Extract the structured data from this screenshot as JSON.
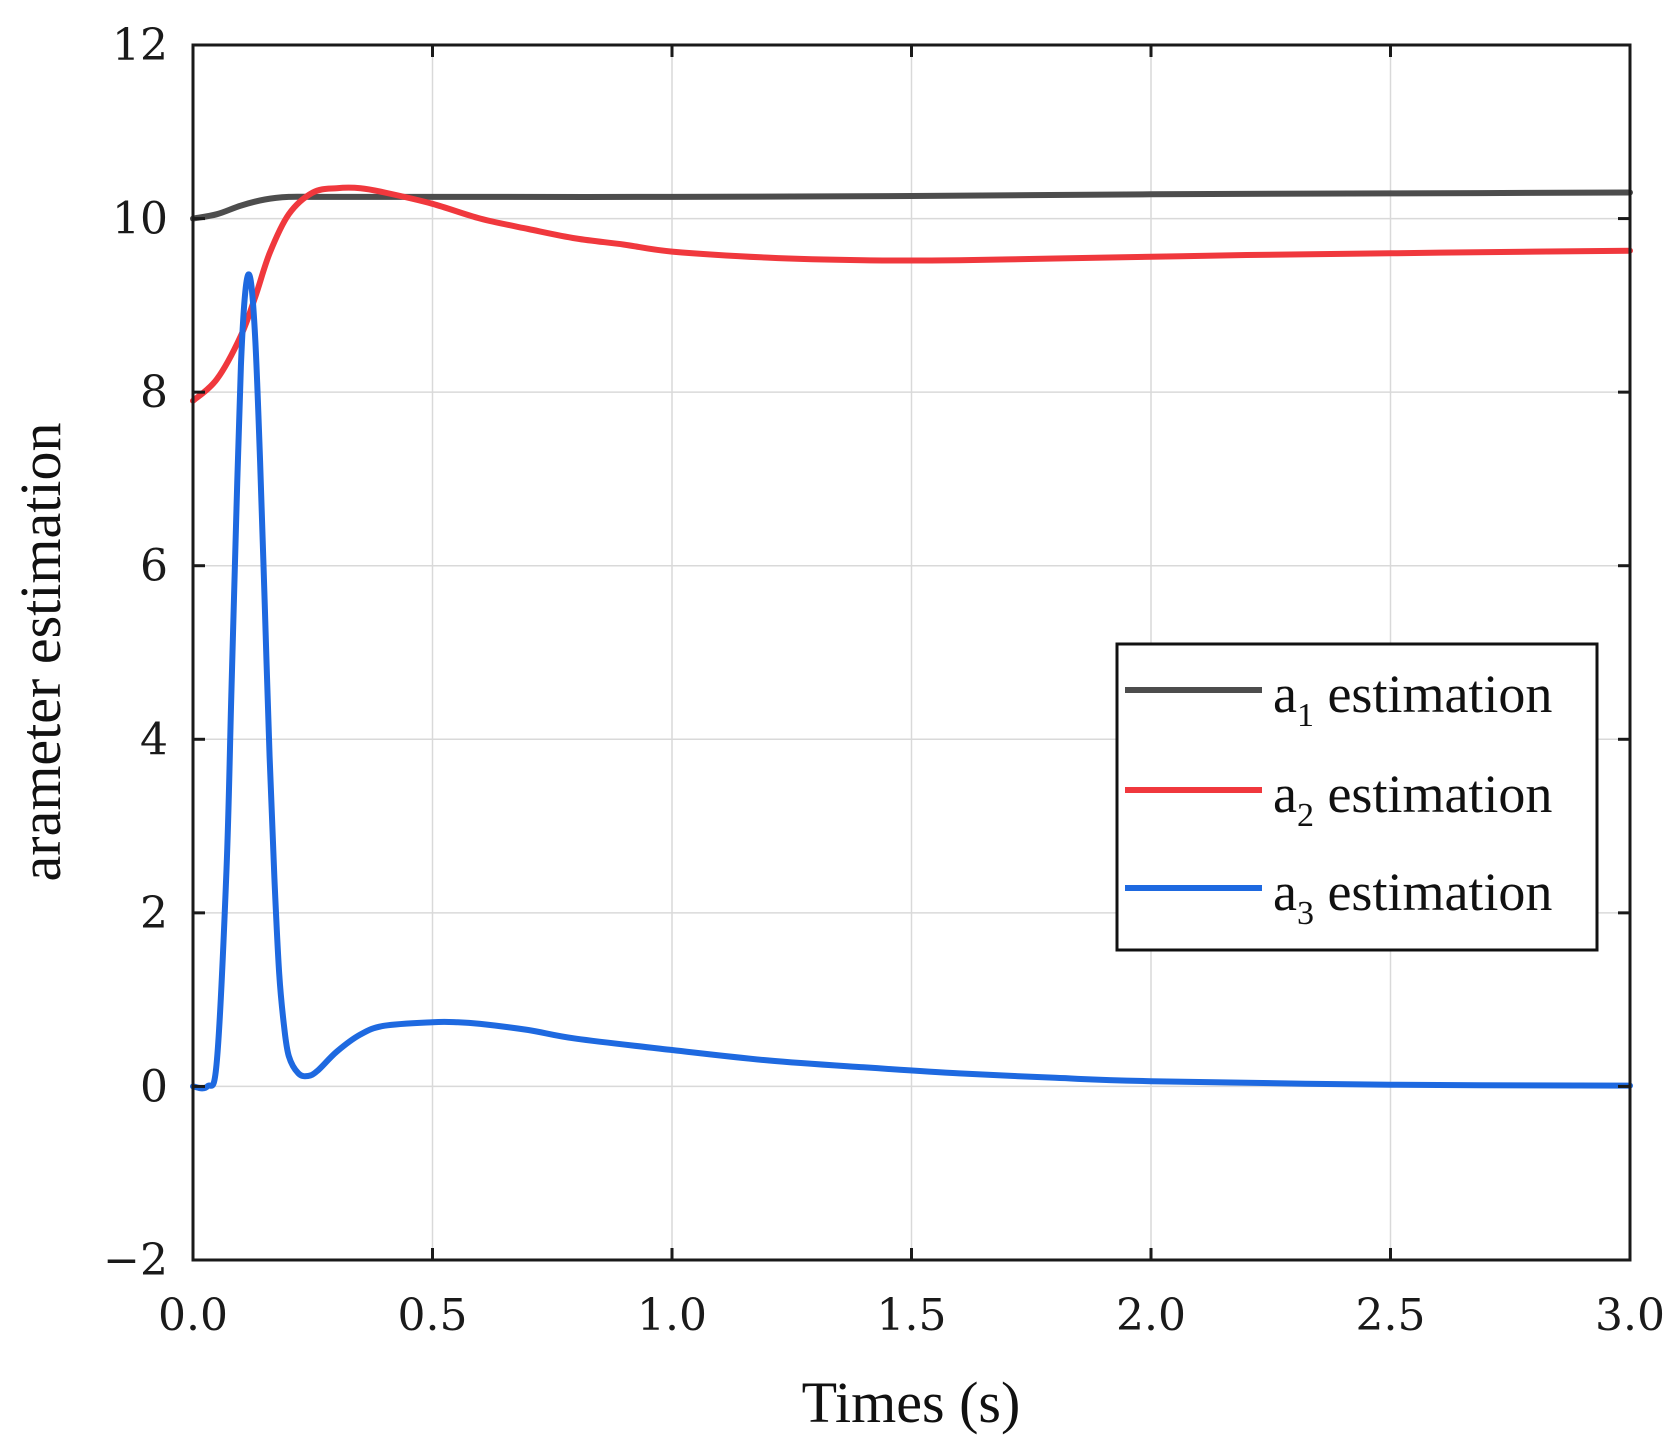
{
  "chart_data": {
    "type": "line",
    "title": "",
    "xlabel": "Times (s)",
    "ylabel": "arameter estimation",
    "xlim": [
      0,
      3
    ],
    "ylim": [
      -2,
      12
    ],
    "xticks": [
      0,
      0.5,
      1.0,
      1.5,
      2.0,
      2.5,
      3.0
    ],
    "xtick_labels": [
      "0.0",
      "0.5",
      "1.0",
      "1.5",
      "2.0",
      "2.5",
      "3.0"
    ],
    "yticks": [
      -2,
      0,
      2,
      4,
      6,
      8,
      10,
      12
    ],
    "ytick_labels": [
      "−2",
      "0",
      "2",
      "4",
      "6",
      "8",
      "10",
      "12"
    ],
    "grid": true,
    "legend_position": "center-right",
    "series": [
      {
        "name": "a1 estimation",
        "legend_base": "a",
        "legend_sub": "1",
        "legend_rest": " estimation",
        "color": "#4d4d4d",
        "x": [
          0,
          0.05,
          0.1,
          0.15,
          0.2,
          0.25,
          0.3,
          0.5,
          1.0,
          1.5,
          2.0,
          2.5,
          3.0
        ],
        "y": [
          10.0,
          10.05,
          10.15,
          10.22,
          10.25,
          10.25,
          10.25,
          10.25,
          10.25,
          10.26,
          10.28,
          10.29,
          10.3
        ]
      },
      {
        "name": "a2 estimation",
        "legend_base": "a",
        "legend_sub": "2",
        "legend_rest": " estimation",
        "color": "#f0383d",
        "x": [
          0,
          0.05,
          0.1,
          0.13,
          0.16,
          0.2,
          0.25,
          0.3,
          0.35,
          0.4,
          0.5,
          0.6,
          0.7,
          0.8,
          0.9,
          1.0,
          1.2,
          1.4,
          1.6,
          1.8,
          2.0,
          2.2,
          2.5,
          2.8,
          3.0
        ],
        "y": [
          7.9,
          8.15,
          8.65,
          9.1,
          9.6,
          10.05,
          10.3,
          10.35,
          10.35,
          10.3,
          10.17,
          10.0,
          9.88,
          9.77,
          9.7,
          9.62,
          9.55,
          9.52,
          9.52,
          9.54,
          9.56,
          9.58,
          9.6,
          9.62,
          9.63
        ]
      },
      {
        "name": "a3 estimation",
        "legend_base": "a",
        "legend_sub": "3",
        "legend_rest": " estimation",
        "color": "#1e69e0",
        "x": [
          0,
          0.03,
          0.05,
          0.07,
          0.08,
          0.09,
          0.1,
          0.11,
          0.12,
          0.13,
          0.14,
          0.15,
          0.16,
          0.17,
          0.18,
          0.19,
          0.2,
          0.22,
          0.24,
          0.26,
          0.3,
          0.35,
          0.4,
          0.5,
          0.55,
          0.6,
          0.7,
          0.8,
          1.0,
          1.2,
          1.4,
          1.6,
          1.8,
          2.0,
          2.5,
          3.0
        ],
        "y": [
          0.0,
          0.0,
          0.3,
          2.5,
          4.5,
          6.5,
          8.3,
          9.2,
          9.3,
          8.6,
          7.2,
          5.5,
          3.8,
          2.4,
          1.3,
          0.7,
          0.35,
          0.15,
          0.12,
          0.18,
          0.4,
          0.6,
          0.7,
          0.74,
          0.74,
          0.72,
          0.65,
          0.55,
          0.42,
          0.3,
          0.22,
          0.15,
          0.1,
          0.06,
          0.02,
          0.01
        ]
      }
    ]
  }
}
